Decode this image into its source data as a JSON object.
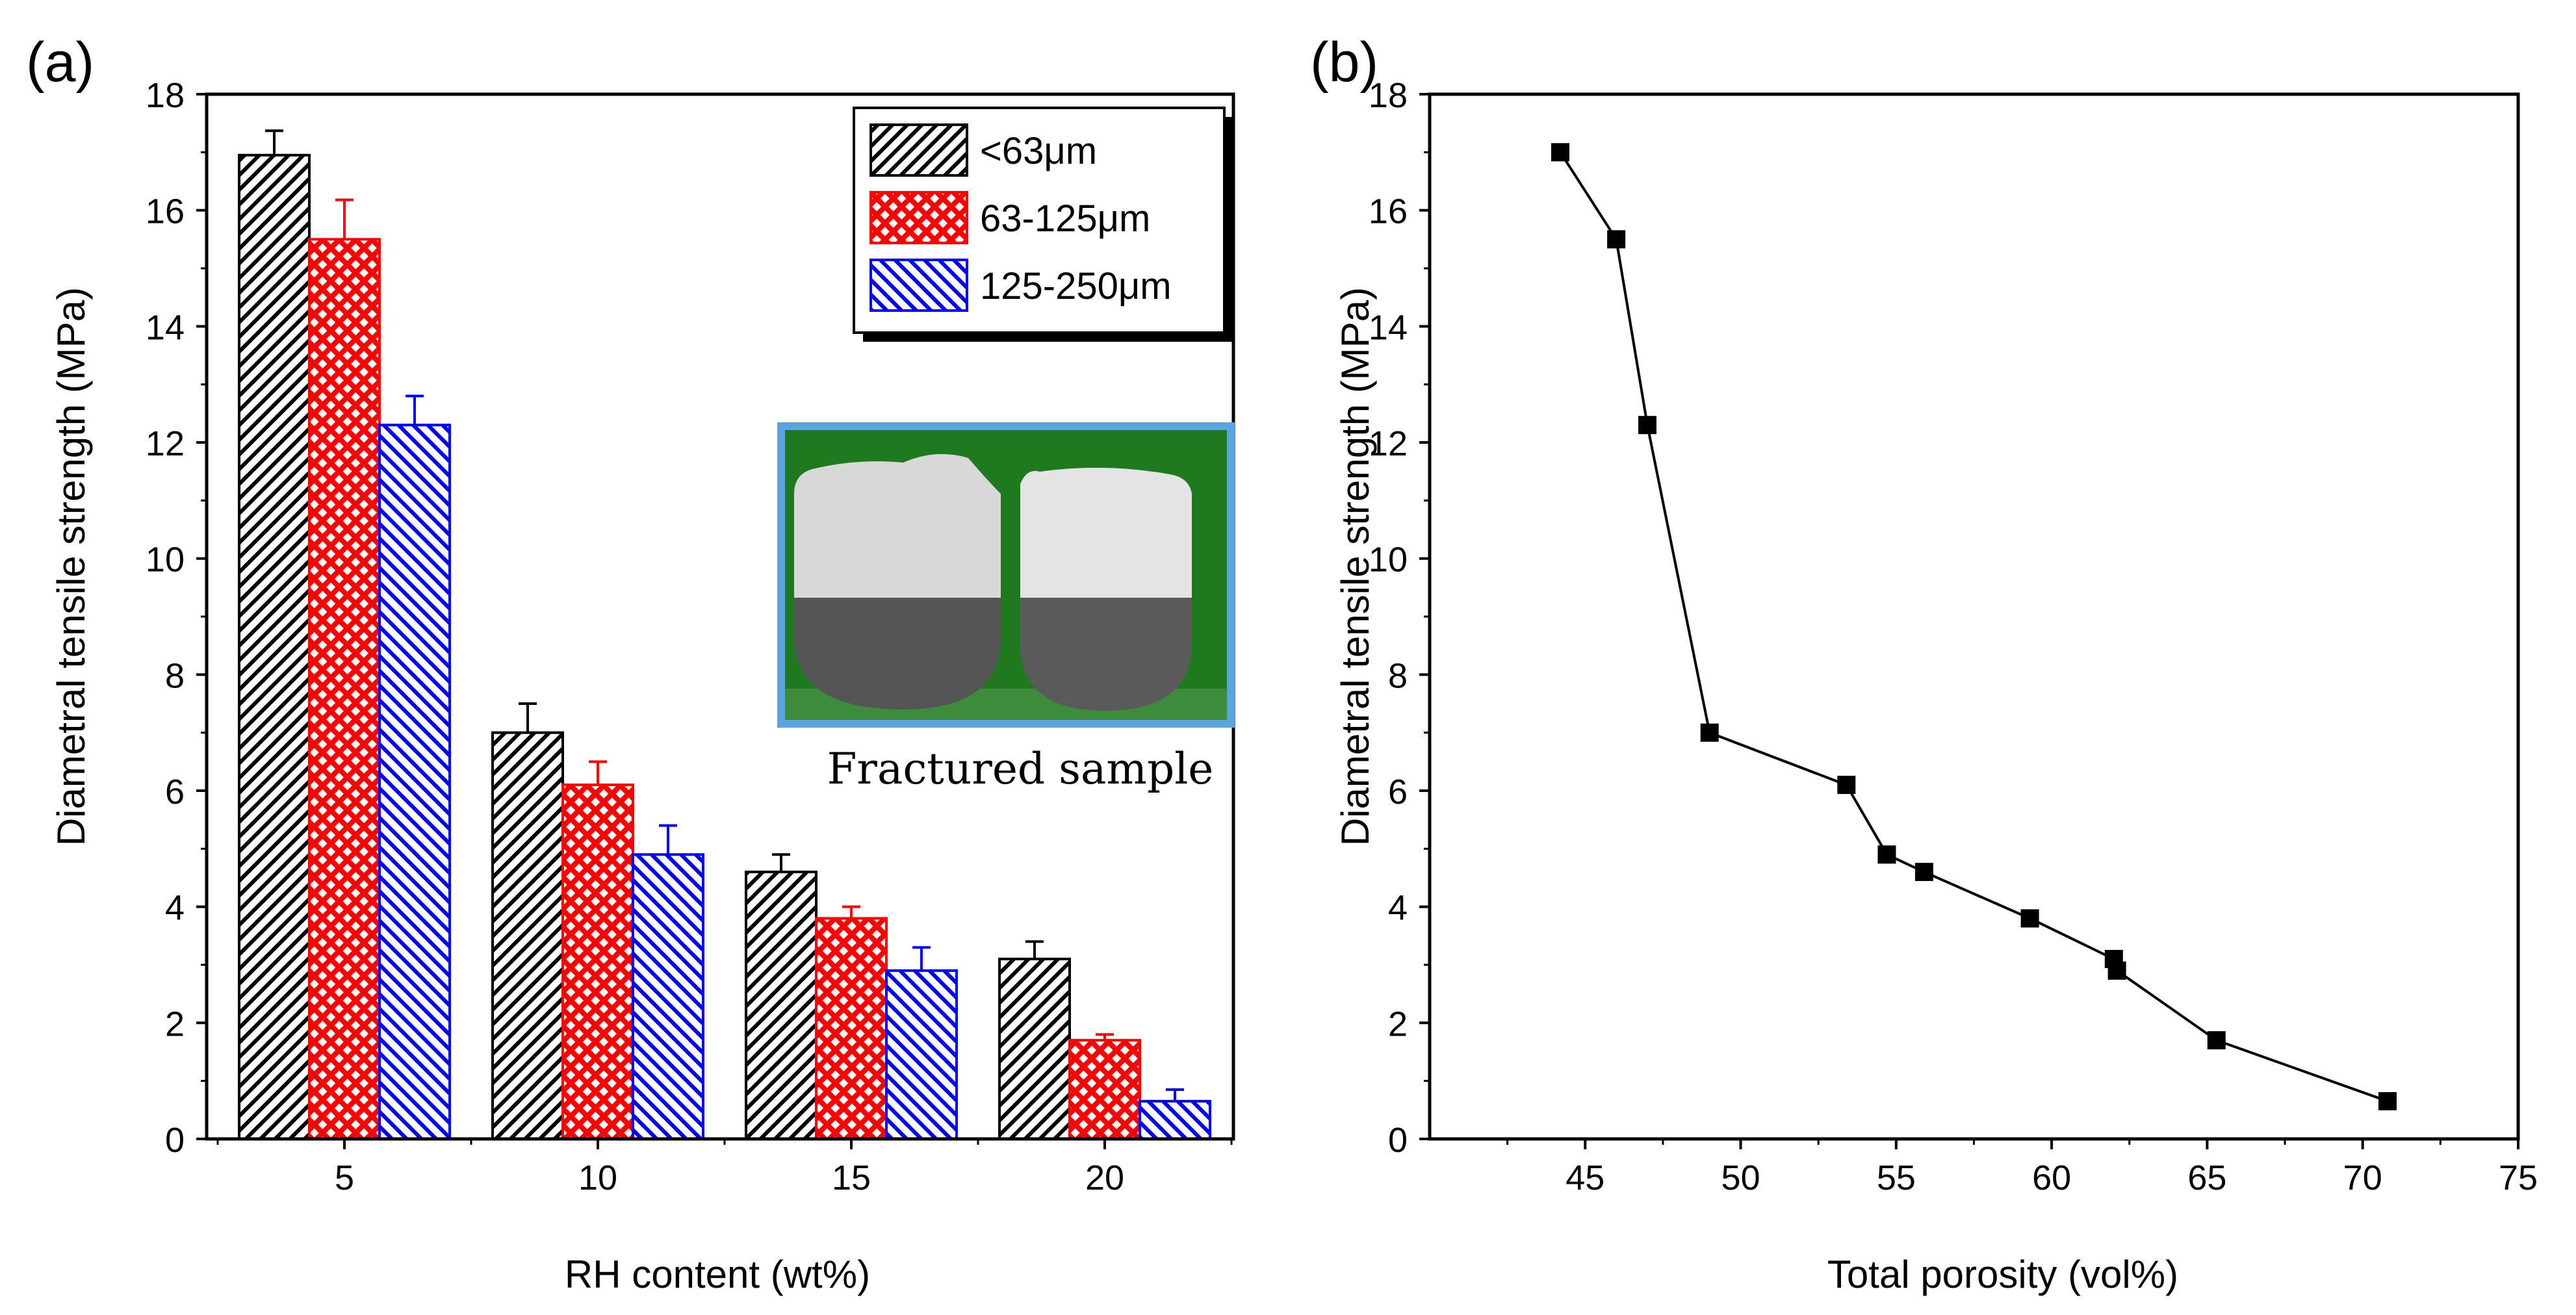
{
  "chart_data": [
    {
      "panel_label": "(a)",
      "type": "bar",
      "title": "",
      "xlabel": "RH content (wt%)",
      "ylabel": "Diametral tensile strength (MPa)",
      "categories": [
        "5",
        "10",
        "15",
        "20"
      ],
      "ylim": [
        0,
        18
      ],
      "yticks": [
        "0",
        "2",
        "4",
        "6",
        "8",
        "10",
        "12",
        "14",
        "16",
        "18"
      ],
      "series": [
        {
          "name": "<63μm",
          "values": [
            16.95,
            7.0,
            4.6,
            3.1
          ],
          "errors": [
            0.42,
            0.5,
            0.3,
            0.3
          ],
          "color": "#000000",
          "pattern": "diagonal"
        },
        {
          "name": "63-125μm",
          "values": [
            15.5,
            6.1,
            3.8,
            1.7
          ],
          "errors": [
            0.68,
            0.4,
            0.2,
            0.1
          ],
          "color": "#ff0000",
          "pattern": "crosshatch"
        },
        {
          "name": "125-250μm",
          "values": [
            12.3,
            4.9,
            2.9,
            0.65
          ],
          "errors": [
            0.5,
            0.5,
            0.4,
            0.2
          ],
          "color": "#0000ff",
          "pattern": "backdiagonal"
        }
      ],
      "legend_position": "top-right",
      "inset_caption": "Fractured sample"
    },
    {
      "panel_label": "(b)",
      "type": "line",
      "title": "",
      "xlabel": "Total porosity (vol%)",
      "ylabel": "Diametral tensile strength (MPa)",
      "xlim": [
        40,
        75
      ],
      "ylim": [
        0,
        18
      ],
      "xticks": [
        "45",
        "50",
        "55",
        "60",
        "65",
        "70",
        "75"
      ],
      "yticks": [
        "0",
        "2",
        "4",
        "6",
        "8",
        "10",
        "12",
        "14",
        "16",
        "18"
      ],
      "points": [
        {
          "x": 44.2,
          "y": 17.0
        },
        {
          "x": 46.0,
          "y": 15.5
        },
        {
          "x": 47.0,
          "y": 12.3
        },
        {
          "x": 49.0,
          "y": 7.0
        },
        {
          "x": 53.4,
          "y": 6.1
        },
        {
          "x": 54.7,
          "y": 4.9
        },
        {
          "x": 55.9,
          "y": 4.6
        },
        {
          "x": 59.3,
          "y": 3.8
        },
        {
          "x": 62.0,
          "y": 3.1
        },
        {
          "x": 62.1,
          "y": 2.9
        },
        {
          "x": 65.3,
          "y": 1.7
        },
        {
          "x": 70.8,
          "y": 0.65
        }
      ],
      "marker": "square",
      "color": "#000000"
    }
  ]
}
